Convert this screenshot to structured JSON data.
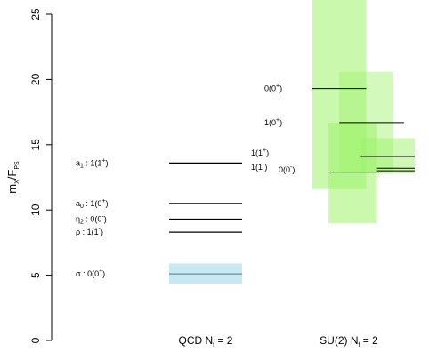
{
  "chart_data": {
    "type": "box-level",
    "ylabel": {
      "main": "m",
      "sub1": "X",
      "sep": "/F",
      "sub2": "PS"
    },
    "ylim": [
      0,
      25
    ],
    "yticks": [
      "0",
      "5",
      "10",
      "15",
      "20",
      "25"
    ],
    "ytick_values": [
      0,
      5,
      10,
      15,
      20,
      25
    ],
    "groups": [
      {
        "label": {
          "text": "QCD N",
          "sub": "f",
          "rest": " = 2"
        }
      },
      {
        "label": {
          "text": "SU(2) N",
          "sub": "f",
          "rest": " = 2"
        }
      }
    ],
    "qcd_levels": [
      {
        "name": "a1",
        "label": {
          "pre": "a",
          "sub": "1",
          "mid": " : 1(1",
          "sup": "+",
          "post": ")"
        },
        "value": 13.6
      },
      {
        "name": "a0",
        "label": {
          "pre": "a",
          "sub": "0",
          "mid": " : 1(0",
          "sup": "+",
          "post": ")"
        },
        "value": 10.5
      },
      {
        "name": "eta2",
        "label": {
          "pre": "η",
          "sub": "2",
          "mid": " : 0(0",
          "sup": "-",
          "post": ")"
        },
        "value": 9.3
      },
      {
        "name": "rho",
        "label": {
          "pre": "ρ",
          "sub": "",
          "mid": " : 1(1",
          "sup": "-",
          "post": ")"
        },
        "value": 8.3
      },
      {
        "name": "sigma",
        "label": {
          "pre": "σ",
          "sub": "",
          "mid": " : 0(0",
          "sup": "+",
          "post": ")"
        },
        "value": 5.1,
        "err_low": 4.3,
        "err_high": 5.9
      }
    ],
    "su2_boxes": [
      {
        "name": "box-0-0plus",
        "x0": 0.0,
        "x1": 0.5,
        "y0": 11.6,
        "y1": 26.2,
        "opacity": 0.55
      },
      {
        "name": "box-1-1plus",
        "x0": 0.25,
        "x1": 0.75,
        "y0": 12.9,
        "y1": 20.6,
        "opacity": 0.45
      },
      {
        "name": "box-1-1minus",
        "x0": 0.15,
        "x1": 0.6,
        "y0": 9.0,
        "y1": 16.7,
        "opacity": 0.55
      },
      {
        "name": "box-0-0minus",
        "x0": 0.45,
        "x1": 0.95,
        "y0": 12.8,
        "y1": 15.5,
        "opacity": 0.5
      }
    ],
    "su2_levels": [
      {
        "name": "0-0plus",
        "x0": 0.0,
        "x1": 0.5,
        "value": 19.3
      },
      {
        "name": "1-1plus",
        "x0": 0.25,
        "x1": 0.85,
        "value": 16.7
      },
      {
        "name": "1-1minus",
        "x0": 0.15,
        "x1": 0.62,
        "value": 12.9
      },
      {
        "name": "0-0minus-a",
        "x0": 0.45,
        "x1": 0.95,
        "value": 14.1
      },
      {
        "name": "0-0minus-b",
        "x0": 0.6,
        "x1": 0.95,
        "value": 13.2
      },
      {
        "name": "0-0minus-c",
        "x0": 0.6,
        "x1": 0.95,
        "value": 13.0
      }
    ],
    "su2_labels": [
      {
        "name": "label-0-0plus",
        "value": 19.3,
        "text": "0(0",
        "sup": "+",
        "post": ")"
      },
      {
        "name": "label-1-1plus",
        "value": 16.7,
        "text": "1(0",
        "sup": "+",
        "post": ")"
      },
      {
        "name": "label-1-1plus-b",
        "value": 14.3,
        "text": "1(1",
        "sup": "+",
        "post": ")"
      },
      {
        "name": "label-1-1minus",
        "value": 13.2,
        "text": "1(1",
        "sup": "-",
        "post": ")"
      },
      {
        "name": "label-0-0minus",
        "value": 13.0,
        "text": "0(0",
        "sup": "-",
        "post": ")"
      }
    ],
    "colors": {
      "su2_box": "#9ef26a",
      "sigma_band": "#c8e8f4",
      "line": "#000000"
    }
  }
}
